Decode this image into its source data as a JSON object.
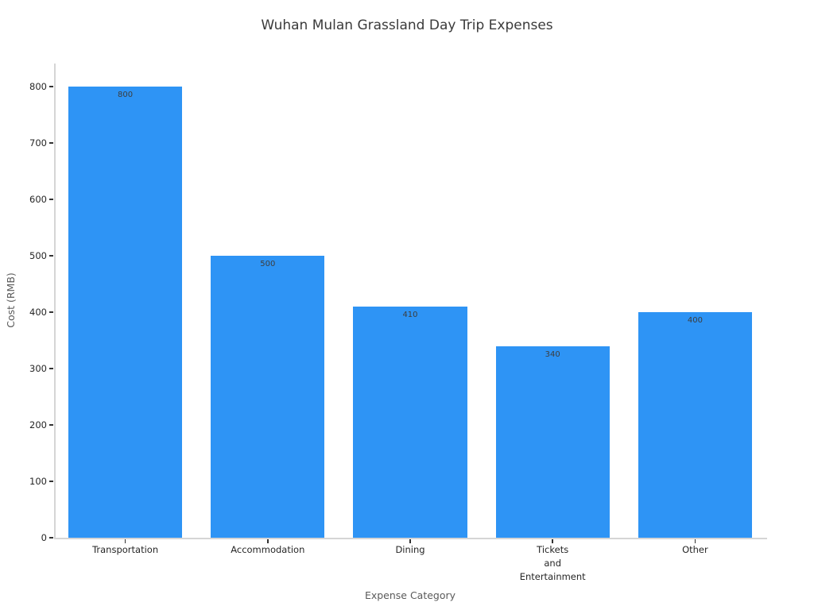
{
  "figure": {
    "title": "Wuhan Mulan Grassland Day Trip Expenses"
  },
  "chart_data": {
    "type": "bar",
    "title": "Wuhan Mulan Grassland Day Trip Expenses",
    "xlabel": "Expense Category",
    "ylabel": "Cost (RMB)",
    "categories": [
      "Transportation",
      "Accommodation",
      "Dining",
      "Tickets\nand\nEntertainment",
      "Other"
    ],
    "values": [
      800,
      500,
      410,
      340,
      400
    ],
    "bar_value_labels": [
      "800",
      "500",
      "410",
      "340",
      "400"
    ],
    "ylim": [
      0,
      800
    ],
    "yticks": [
      0,
      100,
      200,
      300,
      400,
      500,
      600,
      700,
      800
    ],
    "grid": false,
    "legend_position": "none",
    "bar_color_hex": "#2E94F5"
  }
}
